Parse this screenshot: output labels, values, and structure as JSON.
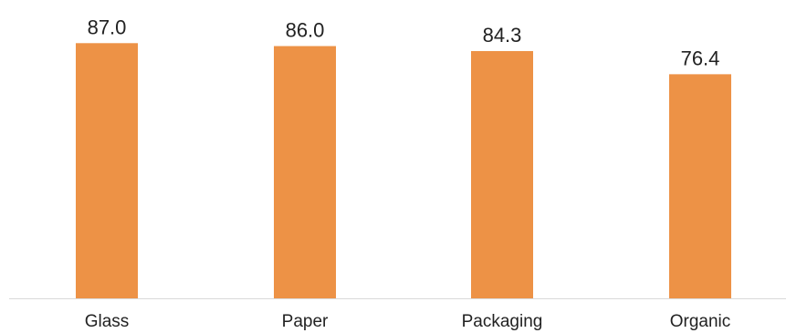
{
  "chart_data": {
    "type": "bar",
    "categories": [
      "Glass",
      "Paper",
      "Packaging",
      "Organic"
    ],
    "values": [
      87.0,
      86.0,
      84.3,
      76.4
    ],
    "data_labels": [
      "87.0",
      "86.0",
      "84.3",
      "76.4"
    ],
    "title": "",
    "xlabel": "",
    "ylabel": "",
    "ylim": [
      0,
      100
    ],
    "grid": false,
    "legend": "none",
    "colors": {
      "bar": "#ED9246",
      "axis": "#D9D9D9",
      "text": "#222222"
    }
  }
}
